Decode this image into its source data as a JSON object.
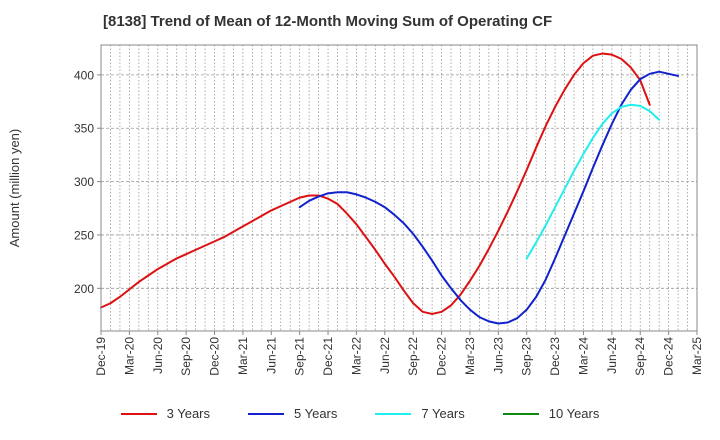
{
  "chart_data": {
    "type": "line",
    "title": "[8138]  Trend of Mean of 12-Month Moving Sum of Operating CF",
    "xlabel": "",
    "ylabel": "Amount (million yen)",
    "ylim": [
      160,
      428
    ],
    "yticks": [
      200,
      250,
      300,
      350,
      400
    ],
    "x_tick_labels": [
      "Dec-19",
      "Mar-20",
      "Jun-20",
      "Sep-20",
      "Dec-20",
      "Mar-21",
      "Jun-21",
      "Sep-21",
      "Dec-21",
      "Mar-22",
      "Jun-22",
      "Sep-22",
      "Dec-22",
      "Mar-23",
      "Jun-23",
      "Sep-23",
      "Dec-23",
      "Mar-24",
      "Jun-24",
      "Sep-24",
      "Dec-24",
      "Mar-25"
    ],
    "grid": true,
    "legend_position": "bottom",
    "series": [
      {
        "name": "3 Years",
        "color": "#dd1111",
        "start_index": 0,
        "values": [
          182,
          186,
          192,
          199,
          206,
          212,
          218,
          223,
          228,
          232,
          236,
          240,
          244,
          248,
          253,
          258,
          263,
          268,
          273,
          277,
          281,
          285,
          287,
          287,
          284,
          279,
          270,
          260,
          248,
          236,
          223,
          211,
          198,
          186,
          178,
          176,
          178,
          184,
          194,
          207,
          221,
          237,
          254,
          272,
          291,
          311,
          332,
          352,
          370,
          386,
          400,
          411,
          418,
          420,
          419,
          415,
          407,
          395,
          372
        ]
      },
      {
        "name": "5 Years",
        "color": "#1122cc",
        "start_index": 21,
        "values": [
          276,
          282,
          286,
          289,
          290,
          290,
          288,
          285,
          281,
          276,
          269,
          261,
          251,
          239,
          226,
          212,
          200,
          189,
          180,
          173,
          169,
          167,
          168,
          172,
          180,
          192,
          208,
          228,
          249,
          270,
          291,
          313,
          334,
          354,
          372,
          386,
          396,
          401,
          403,
          401,
          399
        ]
      },
      {
        "name": "7 Years",
        "color": "#22eeee",
        "start_index": 45,
        "values": [
          228,
          243,
          259,
          276,
          293,
          310,
          326,
          341,
          354,
          364,
          370,
          372,
          371,
          366,
          358
        ]
      },
      {
        "name": "10 Years",
        "color": "#118811",
        "start_index": 0,
        "values": []
      }
    ]
  }
}
